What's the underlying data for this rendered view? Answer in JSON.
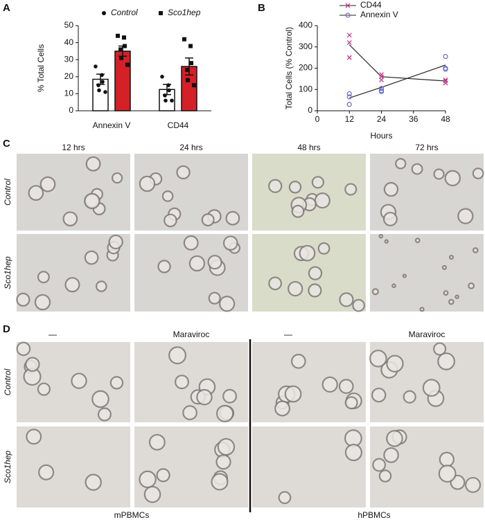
{
  "chart_data": [
    {
      "type": "bar",
      "panel": "A",
      "ylabel": "% Total Cells",
      "categories": [
        "Annexin V",
        "CD44"
      ],
      "ylim": [
        0,
        50
      ],
      "yticks": [
        0,
        10,
        20,
        30,
        40,
        50
      ],
      "series": [
        {
          "name": "Control",
          "color": "#ffffff",
          "values": [
            18.5,
            12.5
          ],
          "errors": [
            3,
            3
          ],
          "points": [
            [
              26,
              21,
              17,
              15,
              12,
              11
            ],
            [
              20,
              15,
              12,
              9,
              6,
              6
            ]
          ]
        },
        {
          "name": "Sco1hep",
          "color": "#d42027",
          "values": [
            35,
            26
          ],
          "errors": [
            3,
            5
          ],
          "points": [
            [
              44,
              43,
              38,
              36,
              31,
              27
            ],
            [
              42,
              38,
              28,
              24,
              18,
              15
            ]
          ]
        }
      ]
    },
    {
      "type": "line",
      "panel": "B",
      "xlabel": "Hours",
      "ylabel": "Total Cells (% Control)",
      "x": [
        12,
        24,
        48
      ],
      "xlim": [
        0,
        48
      ],
      "xticks": [
        0,
        12,
        24,
        36,
        48
      ],
      "ylim": [
        0,
        400
      ],
      "yticks": [
        0,
        100,
        200,
        300,
        400
      ],
      "line_color": "#222222",
      "series": [
        {
          "name": "CD44",
          "color": "#c0398a",
          "marker": "x",
          "values": [
            310,
            160,
            140
          ],
          "points": [
            [
              355,
              320,
              250
            ],
            [
              170,
              160,
              145
            ],
            [
              145,
              140,
              130
            ]
          ]
        },
        {
          "name": "Annexin V",
          "color": "#6a6ad0",
          "marker": "o",
          "values": [
            60,
            110,
            215
          ],
          "points": [
            [
              80,
              65,
              30
            ],
            [
              105,
              95,
              90
            ],
            [
              255,
              200,
              195
            ]
          ]
        }
      ]
    }
  ],
  "panel_c": {
    "letter": "C",
    "columns": [
      "12 hrs",
      "24 hrs",
      "48 hrs",
      "72 hrs"
    ],
    "rows": [
      "Control",
      "Sco1hep"
    ]
  },
  "panel_d": {
    "letter": "D",
    "columns": [
      "—",
      "Maraviroc",
      "—",
      "Maraviroc"
    ],
    "rows": [
      "Control",
      "Sco1hep"
    ],
    "groups": [
      "mPBMCs",
      "hPBMCs"
    ]
  }
}
